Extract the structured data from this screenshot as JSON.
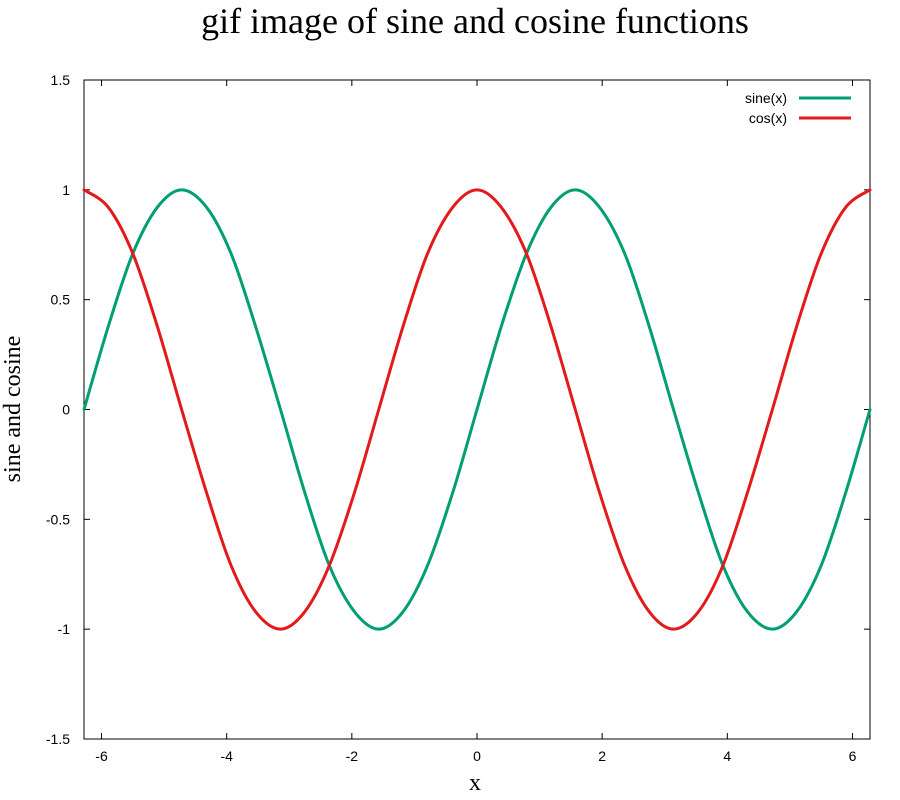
{
  "chart_data": {
    "type": "line",
    "title": "gif image of sine and cosine functions",
    "xlabel": "x",
    "ylabel": "sine and cosine",
    "xlim": [
      -6.28,
      6.28
    ],
    "ylim": [
      -1.5,
      1.5
    ],
    "x_ticks": [
      -6,
      -4,
      -2,
      0,
      2,
      4,
      6
    ],
    "x_tick_labels": [
      "-6",
      "-4",
      "-2",
      "0",
      "2",
      "4",
      "6"
    ],
    "y_ticks": [
      -1.5,
      -1,
      -0.5,
      0,
      0.5,
      1,
      1.5
    ],
    "y_tick_labels": [
      "-1.5",
      "-1",
      "-0.5",
      "0",
      "0.5",
      "1",
      "1.5"
    ],
    "grid": false,
    "legend_position": "top-right",
    "series": [
      {
        "name": "sine(x)",
        "color": "#009e73",
        "x": [
          -6.28,
          -5.89,
          -5.5,
          -5.11,
          -4.72,
          -4.32,
          -3.93,
          -3.54,
          -3.14,
          -2.75,
          -2.36,
          -1.96,
          -1.57,
          -1.18,
          -0.79,
          -0.39,
          0,
          0.39,
          0.79,
          1.18,
          1.57,
          1.96,
          2.36,
          2.75,
          3.14,
          3.54,
          3.93,
          4.32,
          4.72,
          5.11,
          5.5,
          5.89,
          6.28
        ],
        "values": [
          0,
          0.38,
          0.71,
          0.92,
          1,
          0.92,
          0.71,
          0.38,
          0,
          -0.38,
          -0.71,
          -0.92,
          -1,
          -0.92,
          -0.71,
          -0.38,
          0,
          0.38,
          0.71,
          0.92,
          1,
          0.92,
          0.71,
          0.38,
          0,
          -0.38,
          -0.71,
          -0.92,
          -1,
          -0.92,
          -0.71,
          -0.38,
          0
        ]
      },
      {
        "name": "cos(x)",
        "color": "#e31a1c",
        "x": [
          -6.28,
          -5.89,
          -5.5,
          -5.11,
          -4.72,
          -4.32,
          -3.93,
          -3.54,
          -3.14,
          -2.75,
          -2.36,
          -1.96,
          -1.57,
          -1.18,
          -0.79,
          -0.39,
          0,
          0.39,
          0.79,
          1.18,
          1.57,
          1.96,
          2.36,
          2.75,
          3.14,
          3.54,
          3.93,
          4.32,
          4.72,
          5.11,
          5.5,
          5.89,
          6.28
        ],
        "values": [
          1,
          0.92,
          0.71,
          0.38,
          0,
          -0.38,
          -0.71,
          -0.92,
          -1,
          -0.92,
          -0.71,
          -0.38,
          0,
          0.38,
          0.71,
          0.92,
          1,
          0.92,
          0.71,
          0.38,
          0,
          -0.38,
          -0.71,
          -0.92,
          -1,
          -0.92,
          -0.71,
          -0.38,
          0,
          0.38,
          0.71,
          0.92,
          1
        ]
      }
    ]
  }
}
